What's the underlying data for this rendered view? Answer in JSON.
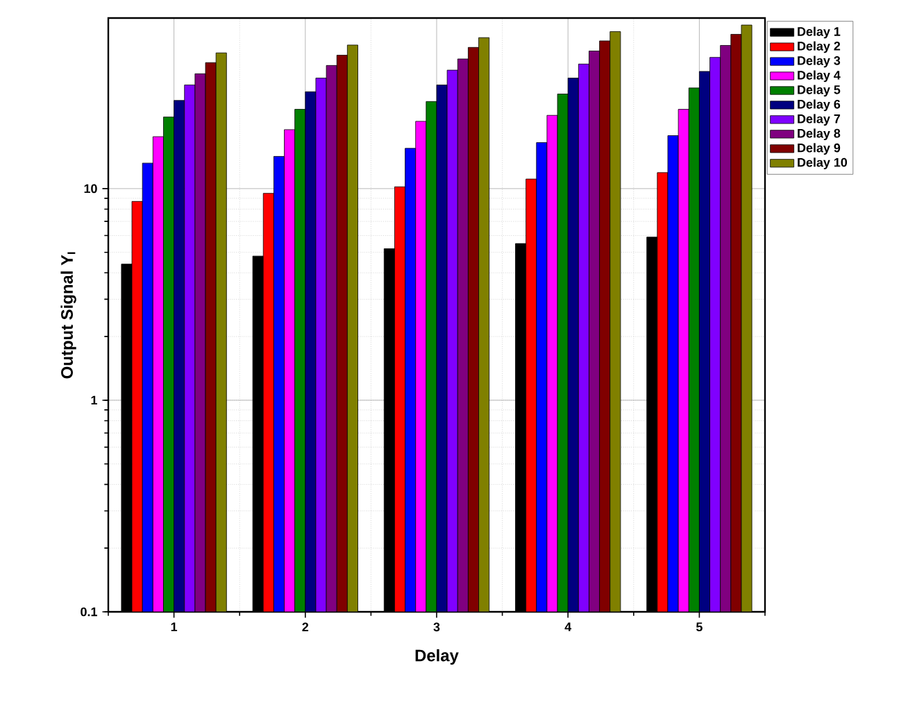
{
  "chart_data": {
    "type": "bar",
    "xlabel": "Delay",
    "ylabel": "Output Signal Y$_{I}$",
    "categories": [
      "1",
      "2",
      "3",
      "4",
      "5"
    ],
    "series": [
      {
        "name": "Delay 1",
        "color": "#000000",
        "values": [
          4.4,
          4.8,
          5.2,
          5.5,
          5.9
        ]
      },
      {
        "name": "Delay 2",
        "color": "#ff0000",
        "values": [
          8.7,
          9.5,
          10.2,
          11.1,
          11.9
        ]
      },
      {
        "name": "Delay 3",
        "color": "#0000ff",
        "values": [
          13.2,
          14.2,
          15.5,
          16.5,
          17.8
        ]
      },
      {
        "name": "Delay 4",
        "color": "#ff00ff",
        "values": [
          17.6,
          19.0,
          20.8,
          22.2,
          23.7
        ]
      },
      {
        "name": "Delay 5",
        "color": "#008000",
        "values": [
          21.8,
          23.7,
          25.8,
          28.0,
          29.9
        ]
      },
      {
        "name": "Delay 6",
        "color": "#000080",
        "values": [
          26.1,
          28.7,
          30.9,
          33.3,
          35.8
        ]
      },
      {
        "name": "Delay 7",
        "color": "#8000ff",
        "values": [
          30.9,
          33.3,
          36.3,
          38.8,
          41.7
        ]
      },
      {
        "name": "Delay 8",
        "color": "#800080",
        "values": [
          34.9,
          38.2,
          41.0,
          44.7,
          47.5
        ]
      },
      {
        "name": "Delay 9",
        "color": "#800000",
        "values": [
          39.4,
          42.7,
          46.5,
          49.9,
          53.6
        ]
      },
      {
        "name": "Delay 10",
        "color": "#808000",
        "values": [
          43.8,
          47.7,
          51.7,
          55.2,
          59.3
        ]
      }
    ],
    "log": "y",
    "ylim": [
      0.1,
      64
    ],
    "yticks": [
      0.1,
      1,
      10
    ],
    "grid": true,
    "legend": "top right"
  }
}
